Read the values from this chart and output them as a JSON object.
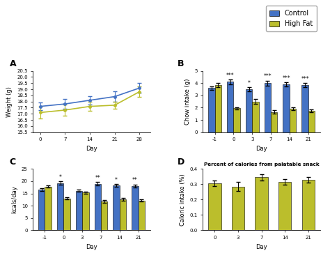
{
  "colors": {
    "control": "#4472C4",
    "high_fat": "#BBBE2C",
    "background": "#FFFFFF",
    "ax_background": "#FFFFFF"
  },
  "legend": {
    "control": "Control",
    "high_fat": "High Fat"
  },
  "panel_A": {
    "title": "A",
    "xlabel": "Day",
    "ylabel": "Weight (g)",
    "days": [
      0,
      7,
      14,
      21,
      28
    ],
    "control_mean": [
      17.6,
      17.8,
      18.1,
      18.4,
      19.1
    ],
    "control_err": [
      0.3,
      0.4,
      0.35,
      0.45,
      0.4
    ],
    "hf_mean": [
      17.1,
      17.3,
      17.6,
      17.7,
      18.8
    ],
    "hf_err": [
      0.5,
      0.45,
      0.35,
      0.3,
      0.45
    ],
    "ylim": [
      15.5,
      20.5
    ],
    "yticks": [
      15.5,
      16.0,
      16.5,
      17.0,
      17.5,
      18.0,
      18.5,
      19.0,
      19.5,
      20.0,
      20.5
    ]
  },
  "panel_B": {
    "title": "B",
    "xlabel": "Day",
    "ylabel": "Chow intake (g)",
    "days": [
      -1,
      0,
      3,
      7,
      14,
      21
    ],
    "control_mean": [
      3.6,
      4.1,
      3.5,
      4.0,
      3.9,
      3.85
    ],
    "control_err": [
      0.15,
      0.2,
      0.15,
      0.2,
      0.15,
      0.15
    ],
    "hf_mean": [
      3.85,
      1.95,
      2.5,
      1.65,
      1.9,
      1.75
    ],
    "hf_err": [
      0.15,
      0.1,
      0.2,
      0.12,
      0.12,
      0.1
    ],
    "ylim": [
      0,
      5
    ],
    "yticks": [
      0,
      1,
      2,
      3,
      4,
      5
    ],
    "sig_control": [
      "",
      "***",
      "*",
      "***",
      "***",
      "***"
    ]
  },
  "panel_C": {
    "title": "C",
    "xlabel": "Day",
    "ylabel": "kcals/day",
    "days": [
      -1,
      0,
      3,
      7,
      14,
      21
    ],
    "control_mean": [
      16.6,
      19.2,
      16.1,
      18.9,
      18.2,
      18.1
    ],
    "control_err": [
      0.6,
      0.7,
      0.5,
      0.7,
      0.6,
      0.6
    ],
    "hf_mean": [
      17.8,
      13.0,
      15.3,
      11.7,
      12.6,
      12.1
    ],
    "hf_err": [
      0.5,
      0.5,
      0.4,
      0.5,
      0.5,
      0.4
    ],
    "ylim": [
      0,
      25
    ],
    "yticks": [
      0,
      5,
      10,
      15,
      20,
      25
    ],
    "sig_control": [
      "",
      "*",
      "",
      "**",
      "*",
      "**"
    ]
  },
  "panel_D": {
    "title": "D",
    "panel_title": "Percent of calories from palatable snack",
    "xlabel": "Day",
    "ylabel": "Caloric intake (%)",
    "days": [
      0,
      3,
      7,
      14,
      21
    ],
    "hf_mean": [
      0.305,
      0.285,
      0.345,
      0.315,
      0.328
    ],
    "hf_err": [
      0.018,
      0.03,
      0.022,
      0.018,
      0.018
    ],
    "ylim": [
      0.0,
      0.4
    ],
    "yticks": [
      0.0,
      0.1,
      0.2,
      0.3,
      0.4
    ]
  }
}
